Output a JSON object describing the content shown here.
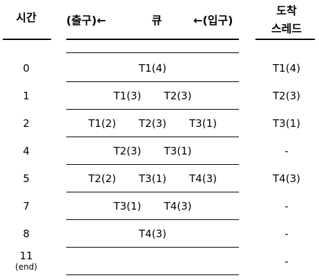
{
  "header": {
    "time_label": "시간",
    "queue_out_label": "(출구)←",
    "queue_label": "큐",
    "queue_in_label": "←(입구)",
    "arrival_line1": "도착",
    "arrival_line2": "스레드"
  },
  "rows": [
    {
      "time": "0",
      "queue": [
        "T1(4)"
      ],
      "arrival": "T1(4)"
    },
    {
      "time": "1",
      "queue": [
        "T1(3)",
        "T2(3)"
      ],
      "arrival": "T2(3)"
    },
    {
      "time": "2",
      "queue": [
        "T1(2)",
        "T2(3)",
        "T3(1)"
      ],
      "arrival": "T3(1)"
    },
    {
      "time": "4",
      "queue": [
        "T2(3)",
        "T3(1)"
      ],
      "arrival": "-"
    },
    {
      "time": "5",
      "queue": [
        "T2(2)",
        "T3(1)",
        "T4(3)"
      ],
      "arrival": "T4(3)"
    },
    {
      "time": "7",
      "queue": [
        "T3(1)",
        "T4(3)"
      ],
      "arrival": "-"
    },
    {
      "time": "8",
      "queue": [
        "T4(3)"
      ],
      "arrival": "-"
    },
    {
      "time": "11",
      "time_note": "(end)",
      "queue": [],
      "arrival": "-"
    }
  ]
}
